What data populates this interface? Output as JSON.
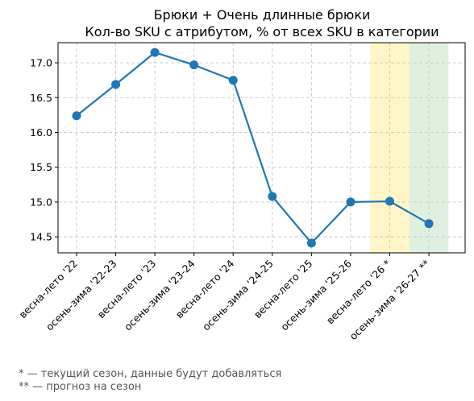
{
  "chart_data": {
    "type": "line",
    "title": "Брюки + Очень длинные брюки",
    "subtitle": "Кол-во SKU с атрибутом, % от всех SKU в категории",
    "xlabel": "",
    "ylabel": "",
    "categories": [
      "весна-лето '22",
      "осень-зима '22-23",
      "весна-лето '23",
      "осень-зима '23-24",
      "весна-лето '24",
      "осень-зима '24-25",
      "весна-лето '25",
      "осень-зима '25-26",
      "весна-лето '26 *",
      "осень-зима '26-27 **"
    ],
    "series": [
      {
        "name": "",
        "values": [
          16.24,
          16.69,
          17.15,
          16.97,
          16.75,
          15.08,
          14.41,
          15.0,
          15.01,
          14.69
        ],
        "color": "#1f77b4"
      }
    ],
    "y_ticks": [
      14.5,
      15.0,
      15.5,
      16.0,
      16.5,
      17.0
    ],
    "y_tick_labels": [
      "14.5",
      "15.0",
      "15.5",
      "16.0",
      "16.5",
      "17.0"
    ],
    "ylim": [
      14.27,
      17.29
    ],
    "grid": true,
    "highlights": [
      {
        "category": "весна-лето '26 *",
        "meaning": "текущий сезон",
        "color": "#fff2b3"
      },
      {
        "category": "осень-зима '26-27 **",
        "meaning": "прогноз",
        "color": "#d5ebd5"
      }
    ]
  },
  "footnotes": {
    "current": "* — текущий сезон, данные будут добавляться",
    "forecast": "** — прогноз на сезон"
  }
}
